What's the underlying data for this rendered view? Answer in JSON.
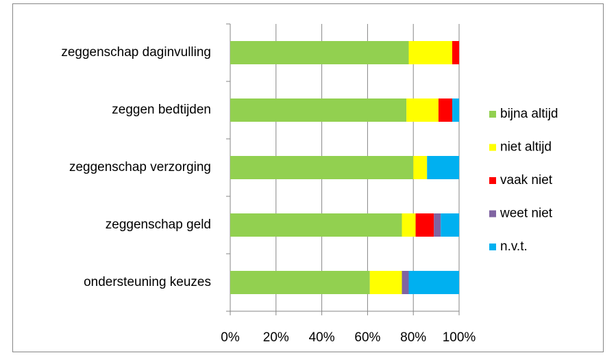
{
  "chart_data": {
    "type": "stacked_bar_horizontal",
    "categories": [
      "zeggenschap daginvulling",
      "zeggen bedtijden",
      "zeggenschap verzorging",
      "zeggenschap geld",
      "ondersteuning keuzes"
    ],
    "series": [
      {
        "name": "bijna altijd",
        "color": "#92d050",
        "values": [
          78,
          77,
          80,
          75,
          61
        ]
      },
      {
        "name": "niet altijd",
        "color": "#ffff00",
        "values": [
          19,
          14,
          6,
          6,
          14
        ]
      },
      {
        "name": "vaak niet",
        "color": "#ff0000",
        "values": [
          3,
          6,
          0,
          8,
          0
        ]
      },
      {
        "name": "weet niet",
        "color": "#8064a2",
        "values": [
          0,
          0,
          0,
          3,
          3
        ]
      },
      {
        "name": "n.v.t.",
        "color": "#00b0f0",
        "values": [
          0,
          3,
          14,
          8,
          22
        ]
      }
    ],
    "xlim": [
      0,
      100
    ],
    "xticks": [
      {
        "value": 0,
        "label": "0%"
      },
      {
        "value": 20,
        "label": "20%"
      },
      {
        "value": 40,
        "label": "40%"
      },
      {
        "value": 60,
        "label": "60%"
      },
      {
        "value": 80,
        "label": "80%"
      },
      {
        "value": 100,
        "label": "100%"
      }
    ],
    "grid": true,
    "legend": "right"
  }
}
